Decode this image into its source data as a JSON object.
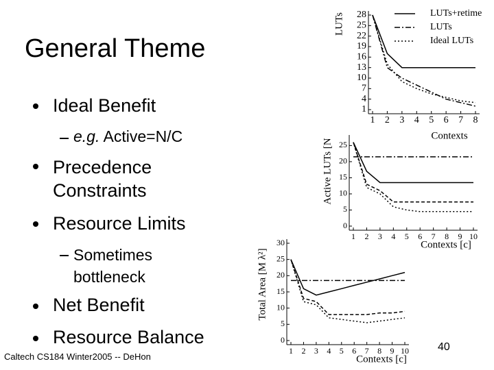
{
  "slide": {
    "title": "General Theme",
    "bullets": [
      "Ideal Benefit",
      "Precedence Constraints",
      "Resource Limits",
      "Net Benefit",
      "Resource Balance"
    ],
    "sub1_em": "e.g.",
    "sub1": "Active=N/C",
    "sub2": "Sometimes bottleneck",
    "footer": "Caltech CS184 Winter2005 -- DeHon",
    "page": "40"
  },
  "chart_data": [
    {
      "type": "line",
      "ylabel": "LUTs",
      "xlabel": "Contexts",
      "x": [
        1,
        2,
        3,
        4,
        5,
        6,
        7,
        8
      ],
      "xlim": [
        1,
        8
      ],
      "xticks": [
        1,
        2,
        3,
        4,
        5,
        6,
        7,
        8
      ],
      "ylim": [
        1,
        28
      ],
      "yticks": [
        1,
        4,
        7,
        10,
        13,
        16,
        19,
        22,
        25,
        28
      ],
      "legend": "upper right",
      "series": [
        {
          "name": "LUTs+retime",
          "color": "#000",
          "dash": "solid",
          "values": [
            28,
            17,
            13,
            13,
            13,
            13,
            13,
            13
          ]
        },
        {
          "name": "LUTs",
          "color": "#000",
          "dash": "dashdot",
          "values": [
            28,
            13,
            10,
            8,
            6,
            4,
            3,
            2
          ]
        },
        {
          "name": "Ideal LUTs",
          "color": "#000",
          "dash": "dotted",
          "values": [
            28,
            14,
            9,
            7,
            5.5,
            4.5,
            3.5,
            3
          ]
        }
      ]
    },
    {
      "type": "line",
      "ylabel": "Active LUTs [N",
      "xlabel": "Contexts [c]",
      "x": [
        1,
        2,
        3,
        4,
        5,
        6,
        7,
        8,
        9,
        10
      ],
      "xlim": [
        1,
        10
      ],
      "xticks": [
        1,
        2,
        3,
        4,
        5,
        6,
        7,
        8,
        9,
        10
      ],
      "ylim": [
        0,
        27
      ],
      "yticks": [
        0,
        5,
        10,
        15,
        20,
        25
      ],
      "series": [
        {
          "color": "#000",
          "dash": "solid",
          "values": [
            26,
            17,
            13.5,
            13.5,
            13.5,
            13.5,
            13.5,
            13.5,
            13.5,
            13.5
          ]
        },
        {
          "color": "#000",
          "dash": "dashdot",
          "values": [
            21.5,
            21.5,
            21.5,
            21.5,
            21.5,
            21.5,
            21.5,
            21.5,
            21.5,
            21.5
          ]
        },
        {
          "color": "#000",
          "dash": "dashed",
          "values": [
            26,
            13,
            11,
            7.5,
            7.5,
            7.5,
            7.5,
            7.5,
            7.5,
            7.5
          ]
        },
        {
          "color": "#000",
          "dash": "dotted",
          "values": [
            26,
            12,
            10,
            6,
            5,
            4.5,
            4.5,
            4.5,
            4.5,
            4.5
          ]
        }
      ]
    },
    {
      "type": "line",
      "ylabel": "Total Area [M λ²]",
      "xlabel": "Contexts [c]",
      "x": [
        1,
        2,
        3,
        4,
        5,
        6,
        7,
        8,
        9,
        10
      ],
      "xlim": [
        1,
        10
      ],
      "xticks": [
        1,
        2,
        3,
        4,
        5,
        6,
        7,
        8,
        9,
        10
      ],
      "ylim": [
        0,
        30
      ],
      "yticks": [
        0,
        5,
        10,
        15,
        20,
        25,
        30
      ],
      "series": [
        {
          "color": "#000",
          "dash": "solid",
          "values": [
            25,
            16,
            14,
            15,
            16,
            17,
            18,
            19,
            20,
            21
          ]
        },
        {
          "color": "#000",
          "dash": "dashdot",
          "values": [
            18.5,
            18.5,
            18.5,
            18.5,
            18.5,
            18.5,
            18.5,
            18.5,
            18.5,
            18.5
          ]
        },
        {
          "color": "#000",
          "dash": "dashed",
          "values": [
            25,
            13,
            12,
            8,
            8,
            8,
            8,
            8.5,
            8.5,
            9
          ]
        },
        {
          "color": "#000",
          "dash": "dotted",
          "values": [
            25,
            12,
            11,
            7,
            6.5,
            6,
            5.5,
            6,
            6.5,
            7
          ]
        }
      ]
    }
  ]
}
